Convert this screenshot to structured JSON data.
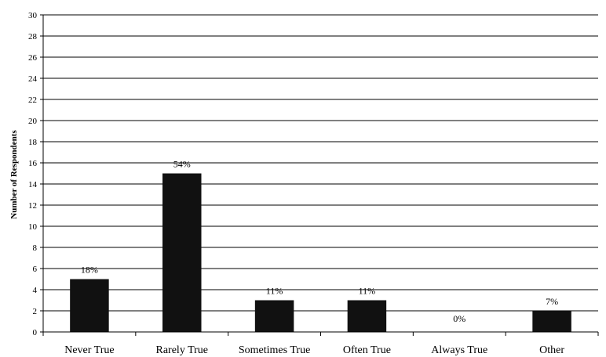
{
  "chart_data": {
    "type": "bar",
    "title": "",
    "xlabel": "",
    "ylabel": "Number of Respondents",
    "ylim": [
      0,
      30
    ],
    "ytick_step": 2,
    "grid": true,
    "legend": "none",
    "categories": [
      "Never True",
      "Rarely True",
      "Sometimes True",
      "Often True",
      "Always True",
      "Other"
    ],
    "values": [
      5,
      15,
      3,
      3,
      0,
      2
    ],
    "data_labels": [
      "18%",
      "54%",
      "11%",
      "11%",
      "0%",
      "7%"
    ],
    "bar_color": "#111111"
  }
}
